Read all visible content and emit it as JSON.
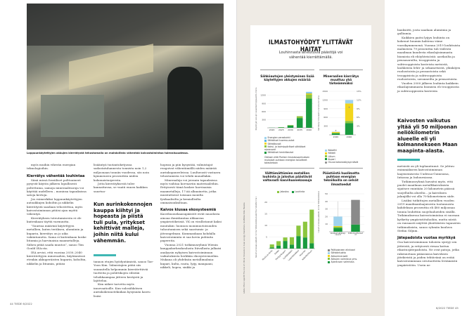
{
  "left_page": {
    "photo_caption": "Loppuunkäytettyjen akkujen kierrätystä tehostamalla on mahdollista vähentää kaivostoimintaa tulevaisuudessa.",
    "col1": [
      {
        "type": "p",
        "text": "myös muihin vihreän energian teknologioihin."
      },
      {
        "type": "h",
        "text": "Kierrätys vähentää louhintaa"
      },
      {
        "type": "p",
        "text": "Siinä missä fossiiliset polttoaineet pysyvät käytön jälkeen lopullisesti poltettuina, samoja mineraalivaroja voi käyttää uudelleen – moninsa tapauksissa satoja kertoja."
      },
      {
        "type": "p",
        "text": "Jos esimerkiksi loppuunkäytettyjen autoakkujen koboltin ja nikkelin kierrätystä saadaan tehostettua, myös kaivostoiminnan pitäisi ajan myötä vähentyä."
      },
      {
        "type": "p",
        "text": "Kierrätyksen toteutumisesta ei ole kuitenkaan täyttä varmuutta."
      },
      {
        "type": "p",
        "text": "”Suurina määrinä käytettyjen metallien, kuten teräksen, alumiinin ja kuparin, kierrätys on jo aika vakiintunutta. Sama ei kuitenkaan koske litiumia ja harvinaisia maametalleja. Siihen pitää saada muutos”, sanoo Tim Gould IEA:sta."
      },
      {
        "type": "p",
        "text": "IEA arvioi, että vuosina 2030–2040 kierrätettyjen mineraalien, käytännössä etenkin akkuperäisten kuparin, koboltin, nikkelin ja litiumin, pitäisi"
      }
    ],
    "col2_top": "lisääntyä tuotantoketjussa sadastatuhannesta tonnista noin 1,2 miljoonaan tonniin vuodessa, siis noin kymmeneen prosenttiin niiden kokonaistarpeesta.",
    "col2_top2": "Jotta kierrätyksestä tulee kannattavaa, se vaatii ennen kaikkea suurtuo-",
    "pull_quote": "Kun aurinkokennojen kauppa kiihtyi ja hopeasta ja piistä tuli pula, yritykset kehittivät malleja, joihin niitä kului vähemmän.",
    "col2_bottom": [
      "tannon etujen hyödyntämistä, sanoo Tae-Yoon Kim. Valmistajien pitää siis suunnitella helpommin kierrätettäviä tuotteita ja poliittikojen edistää tehokkaampaa jätteen keräystä ja lajittelua.",
      "Kim näkee tarvetta myös innovaatioille. Kun valosähköisen aurinkokennoteknikan kysynnän kasvu lisäsi"
    ],
    "col3": [
      {
        "type": "p",
        "ni": true,
        "text": "hopean ja piin kysyntää, valmistajat reagoivat vähentämällä niiden määrää aurinkopaneeleissa. Luultavasti vastaava tehostamista voi tehdä muuallakin."
      },
      {
        "type": "p",
        "text": "Mineraaleja voi joissain tapauksissa myös vaihtaa korvaaviin materiaaleihin. Erityisesti tämä koskee harvinaisia maametalleja, 17:ää alkuainetta, jotka muistuttavat toisiaan monilta fysikaalisilta ja kemiallisilta ominaisuuksiltaan."
      },
      {
        "type": "h",
        "text": "Kaivos kiusaa ekosysteemiä"
      },
      {
        "type": "p",
        "ni": true,
        "text": "Kasvihuonekaasupäästöt eivät muodosta ainoaa ihmiskuntaa uhkaavaa ympäristökriisiä. YK on virallistanut kaksi muutakin: luonnon monimuotoisuuden tuhoutumisen sekä saastumis- ja jäteongelman. Kummankaan kohdalla kaivostoiminta ei saa kovin puhtaita papereita."
      },
      {
        "type": "p",
        "text": "Vuonna 2021 tutkimusryhmä Wienin kauppakorkeakoulusta Itävallasta julkaisi analyysin nykyisen kaivostoiminnan vaikutuksista herkkiin ekosysteemeihin. Mukana oli yhdeksän metallimalmia: kupari, kulta, rauta, lyijy, mangaani, nikkeli, hopea, sinkki ja"
      }
    ],
    "footer": "44 TIEDE 6/2022"
  },
  "infographic": {
    "title": "ILMASTOHYÖDYT YLITTÄVÄT HAITAT",
    "subtitle": "Louhinnasta aiheutuvia päästöjä voi vähentää kierrättämällä.",
    "source": "Lähde: IEA:n raportti The role of critical minerals in clean energy transitions. Grafiikka: Riku Huuska",
    "colors": {
      "dark_green": "#1a9a3f",
      "light_green": "#8cc63f",
      "yellow": "#f2d51c",
      "light_blue": "#9fd3ee",
      "blue": "#5bb7e6",
      "grey": "#8a8a8a",
      "olive": "#c7d84a"
    },
    "chart_data": [
      {
        "type": "bar",
        "stacked": true,
        "title": "Sähköautojen yleistyminen lisää käytettyjen akkujen määrää",
        "ylabel": "Käytettyjen akkujen kapasiteetti gigawattitunteina",
        "ylim": [
          0,
          1400
        ],
        "yticks": [
          300,
          600,
          900,
          1200
        ],
        "categories": [
          "2020",
          "2025",
          "2030",
          "2035",
          "2040"
        ],
        "series": [
          {
            "name": "Sähköiset henkilöautot",
            "color": "#1a9a3f",
            "values": [
              5,
              20,
              85,
              360,
              1080
            ]
          },
          {
            "name": "Kaksi- ja kolmipyöräiset sähköiset ajoneuvot",
            "color": "#8cc63f",
            "values": [
              0,
              4,
              15,
              60,
              150
            ]
          },
          {
            "name": "Sähköbussit",
            "color": "#f2d51c",
            "values": [
              0,
              1,
              3,
              10,
              40
            ]
          },
          {
            "name": "Sähköiset kuorma-autot",
            "color": "#5bb7e6",
            "values": [
              0,
              0,
              1,
              5,
              30
            ]
          },
          {
            "name": "Energian varastointi",
            "color": "#9fd3ee",
            "values": [
              0,
              0,
              1,
              5,
              30
            ]
          }
        ],
        "note": "Oletaen että Pariisin ilmastosopimuksen mukaiset puhtaan energian tavoitteet toteutetaan"
      },
      {
        "type": "bar",
        "stacked": true,
        "title": "Mineraalien kierrätys muuttuu yhä tärkeämmäksi",
        "ylabel": "Kierrätetyt mineraalit tuhansina tonneina",
        "ylim": [
          0,
          1500
        ],
        "yticks": [
          300,
          600,
          900,
          1200,
          1500
        ],
        "y2ticks": [
          "3%",
          "6%",
          "9%",
          "12%",
          "15%"
        ],
        "categories": [
          "2020",
          "2040"
        ],
        "series": [
          {
            "name": "Kupari",
            "color": "#1a9a3f",
            "values": [
              50,
              400
            ]
          },
          {
            "name": "Litium",
            "color": "#8cc63f",
            "values": [
              20,
              80
            ]
          },
          {
            "name": "Nikkeli",
            "color": "#f2d51c",
            "values": [
              30,
              600
            ]
          },
          {
            "name": "Koboltti",
            "color": "#9fd3ee",
            "values": [
              10,
              120
            ]
          }
        ],
        "share_series": {
          "name": "Osuus kokonaiskysynnästä",
          "color": "#8a8a8a",
          "values_percent": [
            1.5,
            9.5
          ]
        }
      },
      {
        "type": "bar",
        "stacked": true,
        "title": "Välttämättömien metallien louhinta ja jalostus päästävät valtavasti kasvihuonekaasuja",
        "ylabel": "Kasvihuonekaasupäästöt, tonnia hiilidioksidiekvivalenttia metallitonnia kohti",
        "ylim": [
          0,
          20
        ],
        "yticks": [
          5,
          10,
          15,
          20
        ],
        "categories": [
          "Rauta ja teräs",
          "Sinkki",
          "Porfyyrikupari",
          "Sulfidinikkeli",
          "Lateriittinikkeli",
          "Alumiini",
          "Koboltti/litium"
        ],
        "series": [
          {
            "name": "Louhinta",
            "color": "#1a9a3f",
            "values": [
              0.5,
              1.3,
              3.3,
              1.7,
              5.4,
              4.8,
              2.3
            ]
          },
          {
            "name": "Jalostus",
            "color": "#8cc63f",
            "values": [
              1.3,
              1.9,
              1.5,
              3.2,
              4.5,
              6.8,
              14.5
            ]
          }
        ]
      },
      {
        "type": "bar",
        "stacked": true,
        "title": "Päästöistä huolimatta puhtaan energian tekniikoilla on selvät ilmastoedut",
        "ylabel": "Elinkaaren kasvihuonekaasupäästöt, tonnia hiilidioksidiekvivalenttia",
        "ylim": [
          0,
          50
        ],
        "yticks": [
          10,
          20,
          30,
          40,
          50
        ],
        "categories": [
          "Akulliset sähköajoneuvot",
          "Polttomoottoriautot"
        ],
        "series": [
          {
            "name": "Ajoneuvon valmistus",
            "color": "#1a9a3f",
            "values": [
              5,
              9.5
            ]
          },
          {
            "name": "Akkujen valmistus yms.",
            "color": "#8cc63f",
            "values": [
              1.5,
              0
            ]
          },
          {
            "name": "Akkumineraalit",
            "color": "#f2d51c",
            "values": [
              1,
              0
            ]
          },
          {
            "name": "Sähköntuotto",
            "color": "#9fd3ee",
            "values": [
              12.5,
              0
            ]
          },
          {
            "name": "Polttoaineen elinkaari",
            "color": "#8a8a8a",
            "values": [
              0,
              32.5
            ]
          }
        ],
        "error_max": [
          40,
          null
        ]
      }
    ]
  },
  "right_page": {
    "col_top": [
      {
        "ni": true,
        "text": "bauksiitti, josta saadaan alumiinia ja galliumia."
      },
      {
        "text": "Kaikkien paitsi lyijyn louhinta on kokenut buumin kahtena viime vuosikymmenenä. Vuonna 2019 louhituista malmeista 79 prosenttia tuli viidestä maailman kuudesta rikaslajisimmasta biomista eli eliöyhteisöstä: aavikoilta ja pensasaroilta, trooppisista ja subtrooppisista kosteista metsistä, lauhkeista lehti- ja sekametsistä, ylänköjen ruohostoista ja pensastoista sekä trooppisista ja subtrooppisista ruohostoista, savanneilta ja pensastoista."
      },
      {
        "text": "Vuoden 2000 jälkeen louhinta kaikkein rikaslajisimmasta biomista eli trooppisista ja subtrooppisista kosteista"
      }
    ],
    "pull_quote": "Kaivosten vaikutus yltää yli 50 miljoonan neliökilometrin alueelle eli yli kolmannekseen Maan maapinta-alasta.",
    "col_bottom": [
      {
        "ni": true,
        "text": "metsistä on yli tuplaantunut. Se johtuu enimmäkseen kaivostoiminnan laajenemisesta Uudessa-Guineassa, Intiassa ja Indonesiassa."
      },
      {
        "text": "Tutkimusryhmä havaitsi myös, että puolet maailman metallikaivoksista sijaitsee enintään 20 kilometrin päässä suojelluilta alueilta – ja kaivoksen jalanjälki voi olla 70-kilometrinen säde."
      },
      {
        "text": "Lisäksi tutkittujen metallien vuoden 2019 maailmanlaajuisesta tuotannosta kahdeksan prosenttia eli 480 miljoonaa tonnia louhittiin suojelualueiden sisällä. Tutkimuksessa kaivostoimintaa ei suoraan kytketty ympäristötuhoihin, mutta niistä on runsaasti näyttöä yksittäisten tapausten tutkimuksista, sanoo ryhmän kuuluva Stefan Giljum."
      }
    ],
    "heading": "Jätepadoista vuotaa myrkkyä",
    "col_end": "Osa kaivostoiminnan tuhoista syntyy sen jätteistä, ja erityisesti riesaa koituu rikastusjätepadoista. Ne ovat patoja, jotka rakennetaan pääasiassa kaivoksen jätekivistä ja joiden tehtävänä on estää kaivostoiminnan sivutuotteita leviämästä ympäristöön. Usein ne",
    "footer": "6/2022 TIEDE 45"
  }
}
